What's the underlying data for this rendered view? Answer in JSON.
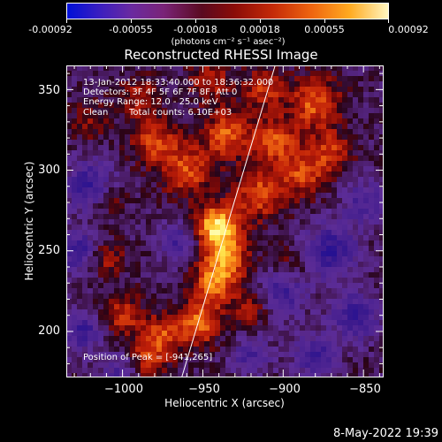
{
  "colorbar": {
    "tick_labels": [
      "-0.00092",
      "-0.00055",
      "-0.00018",
      "0.00018",
      "0.00055",
      "0.00092"
    ],
    "unit_label": "(photons cm⁻² s⁻¹ asec⁻²)"
  },
  "plot": {
    "title": "Reconstructed RHESSI Image",
    "xlabel": "Heliocentric X (arcsec)",
    "ylabel": "Heliocentric Y (arcsec)",
    "xticks": [
      "−1000",
      "−950",
      "−900",
      "−850"
    ],
    "yticks": [
      "350",
      "300",
      "250",
      "200"
    ]
  },
  "annotations": {
    "line1": "13-Jan-2012 18:33:40.000 to 18:36:32.000",
    "line2": "Detectors: 3F 4F 5F 6F 7F 8F, Att 0",
    "line3": "Energy Range: 12.0 - 25.0 keV",
    "line4_left": "Clean",
    "line4_right": "Total counts: 6.10E+03",
    "peak": "Position of Peak = [-941,265]"
  },
  "footer": {
    "timestamp": "8-May-2022 19:39"
  },
  "image_data": {
    "x_range": [
      -1035,
      -838
    ],
    "y_range": [
      172,
      365
    ],
    "peak_position": [
      -941,
      265
    ],
    "value_range": [
      -0.00092,
      0.00092
    ],
    "limb_line": [
      [
        -963,
        172
      ],
      [
        -905,
        365
      ]
    ],
    "colormap": "red-temperature with blue-purple negatives",
    "colors": {
      "background": "#000000",
      "negative_deep": "#3a1468",
      "negative_mid": "#5a2c98",
      "zero": "#200010",
      "positive_low": "#9a0808",
      "positive_mid": "#e85a10",
      "positive_high": "#ffb820",
      "peak": "#fff880",
      "axis": "#ffffff"
    },
    "blobs": [
      {
        "x": -941,
        "y": 265,
        "amp": 1.0,
        "r": 9
      },
      {
        "x": -936,
        "y": 245,
        "amp": 0.7,
        "r": 10
      },
      {
        "x": -944,
        "y": 228,
        "amp": 0.6,
        "r": 9
      },
      {
        "x": -952,
        "y": 205,
        "amp": 0.65,
        "r": 9
      },
      {
        "x": -975,
        "y": 198,
        "amp": 0.5,
        "r": 9
      },
      {
        "x": -1000,
        "y": 210,
        "amp": 0.45,
        "r": 9
      },
      {
        "x": -985,
        "y": 182,
        "amp": 0.45,
        "r": 9
      },
      {
        "x": -1010,
        "y": 245,
        "amp": 0.35,
        "r": 8
      },
      {
        "x": -960,
        "y": 300,
        "amp": 0.55,
        "r": 11
      },
      {
        "x": -980,
        "y": 318,
        "amp": 0.5,
        "r": 10
      },
      {
        "x": -935,
        "y": 322,
        "amp": 0.6,
        "r": 10
      },
      {
        "x": -915,
        "y": 285,
        "amp": 0.55,
        "r": 11
      },
      {
        "x": -905,
        "y": 318,
        "amp": 0.55,
        "r": 10
      },
      {
        "x": -880,
        "y": 342,
        "amp": 0.6,
        "r": 11
      },
      {
        "x": -888,
        "y": 298,
        "amp": 0.5,
        "r": 10
      },
      {
        "x": -870,
        "y": 312,
        "amp": 0.45,
        "r": 9
      },
      {
        "x": -912,
        "y": 350,
        "amp": 0.45,
        "r": 9
      },
      {
        "x": -945,
        "y": 355,
        "amp": 0.4,
        "r": 9
      },
      {
        "x": -990,
        "y": 345,
        "amp": 0.35,
        "r": 9
      },
      {
        "x": -1020,
        "y": 330,
        "amp": 0.3,
        "r": 8
      },
      {
        "x": -1010,
        "y": 282,
        "amp": 0.3,
        "r": 8
      },
      {
        "x": -920,
        "y": 215,
        "amp": 0.35,
        "r": 8
      },
      {
        "x": -895,
        "y": 240,
        "amp": 0.25,
        "r": 8
      },
      {
        "x": -1020,
        "y": 290,
        "amp": -0.6,
        "r": 10
      },
      {
        "x": -1028,
        "y": 250,
        "amp": -0.55,
        "r": 9
      },
      {
        "x": -1025,
        "y": 200,
        "amp": -0.5,
        "r": 9
      },
      {
        "x": -965,
        "y": 255,
        "amp": -0.45,
        "r": 8
      },
      {
        "x": -900,
        "y": 225,
        "amp": -0.5,
        "r": 10
      },
      {
        "x": -870,
        "y": 250,
        "amp": -0.6,
        "r": 11
      },
      {
        "x": -855,
        "y": 210,
        "amp": -0.55,
        "r": 10
      },
      {
        "x": -880,
        "y": 185,
        "amp": -0.5,
        "r": 9
      },
      {
        "x": -920,
        "y": 185,
        "amp": -0.4,
        "r": 8
      },
      {
        "x": -850,
        "y": 280,
        "amp": -0.4,
        "r": 9
      },
      {
        "x": -1000,
        "y": 175,
        "amp": -0.4,
        "r": 8
      }
    ]
  }
}
